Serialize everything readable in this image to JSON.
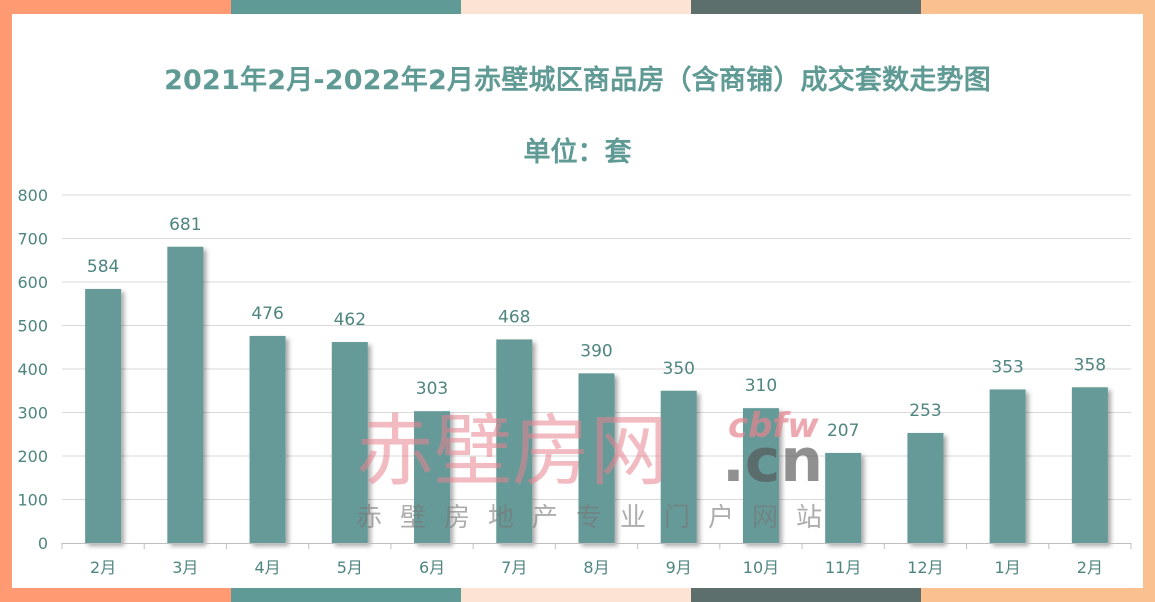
{
  "chart_data": {
    "type": "bar",
    "title": "2021年2月-2022年2月赤壁城区商品房（含商铺）成交套数走势图",
    "subtitle": "单位：套",
    "categories": [
      "2月",
      "3月",
      "4月",
      "5月",
      "6月",
      "7月",
      "8月",
      "9月",
      "10月",
      "11月",
      "12月",
      "1月",
      "2月"
    ],
    "values": [
      584,
      681,
      476,
      462,
      303,
      468,
      390,
      350,
      310,
      207,
      253,
      353,
      358
    ],
    "ylim": [
      0,
      800
    ],
    "yticks": [
      0,
      100,
      200,
      300,
      400,
      500,
      600,
      700,
      800
    ],
    "grid": true,
    "legend": "none",
    "bar_color": "#669a98",
    "text_color": "#5f9a95"
  },
  "watermark": {
    "logo_text": "赤壁房网",
    "domain_italic": "cbfw",
    "domain_suffix": ".cn",
    "slogan": "赤壁房地产专业门户网站"
  },
  "frame_colors": [
    "#ff9a73",
    "#5f9a97",
    "#fde3d4",
    "#5d6f6c",
    "#fbc08f"
  ]
}
